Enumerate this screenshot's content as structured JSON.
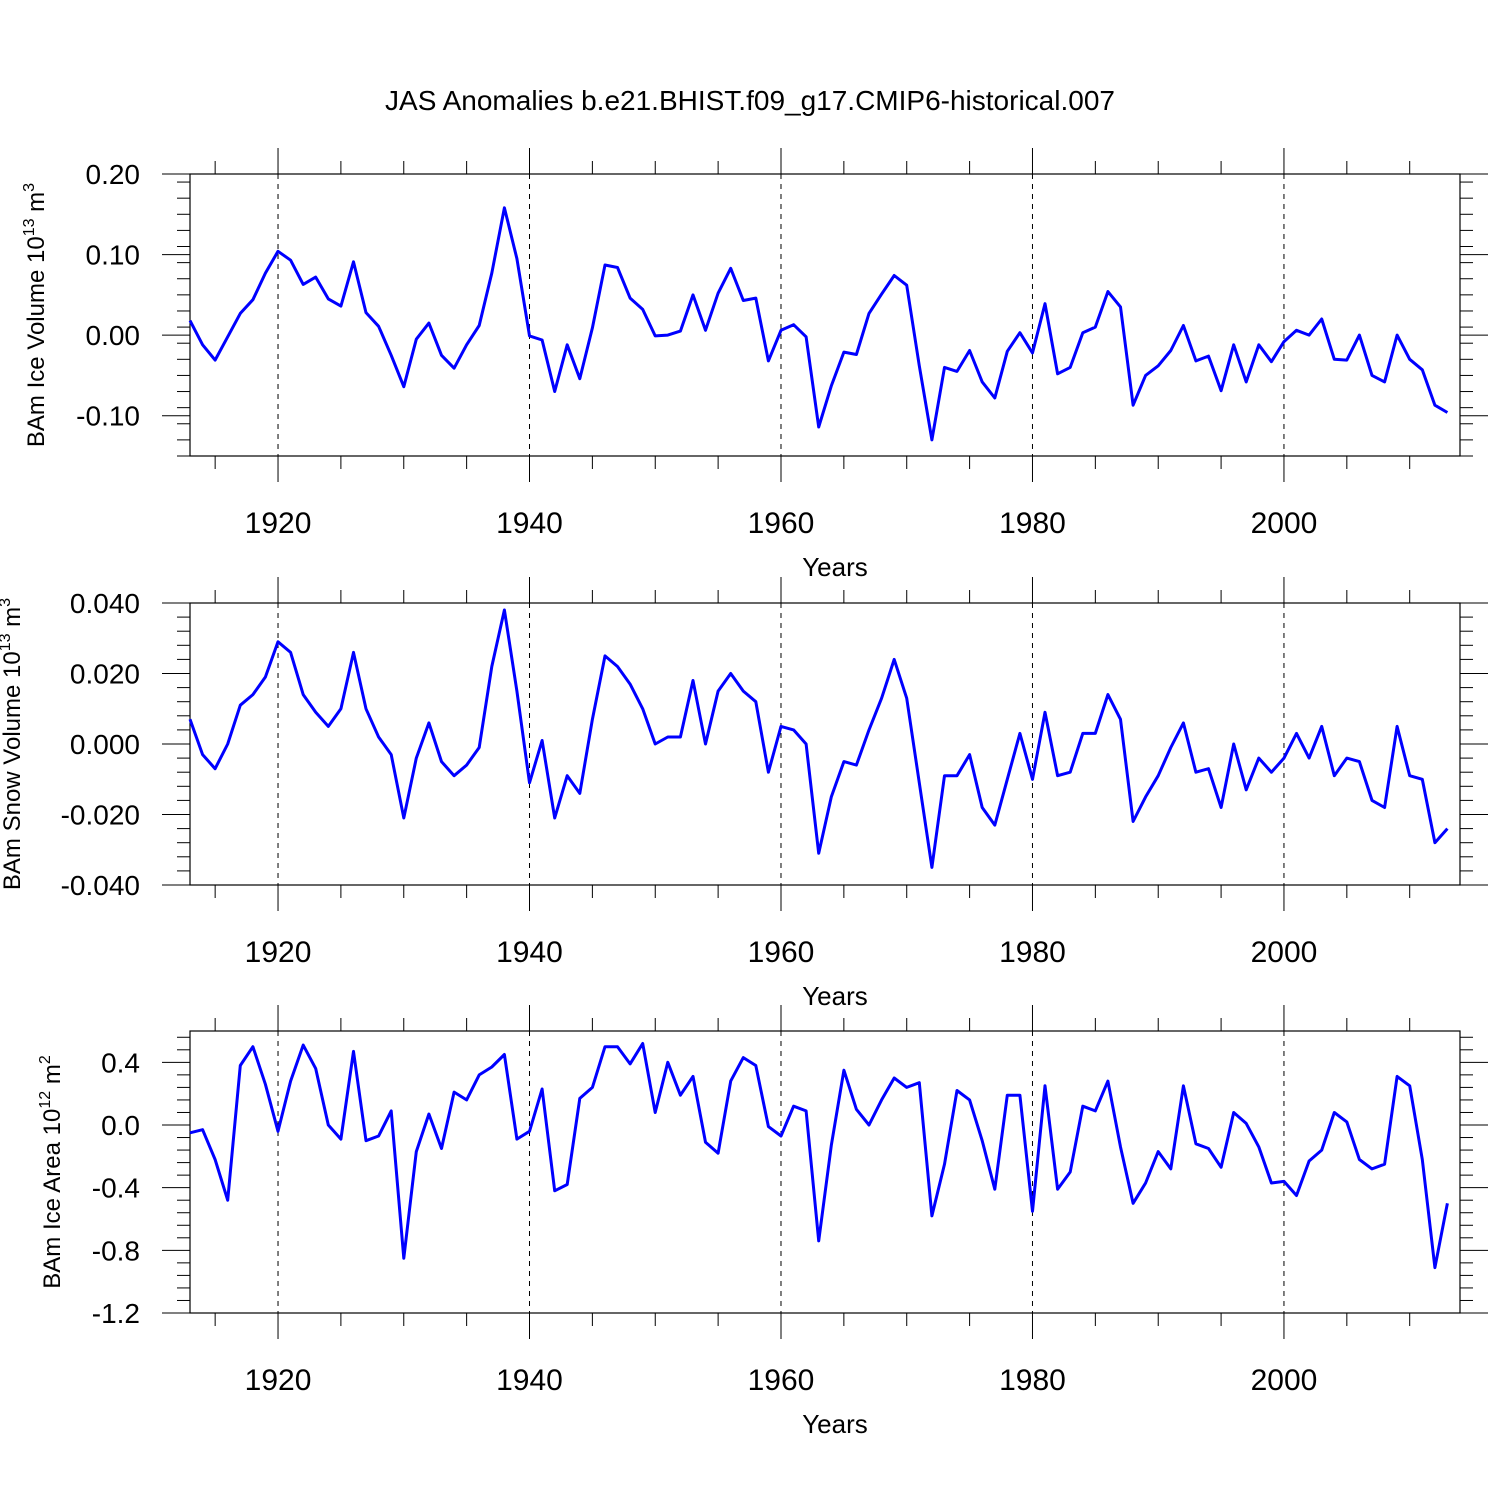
{
  "title": "JAS Anomalies b.e21.BHIST.f09_g17.CMIP6-historical.007",
  "chart_data": [
    {
      "type": "line",
      "ylabel_main": "BAm Ice Volume 10",
      "ylabel_exp": "13",
      "ylabel_unit": " m",
      "ylabel_unit_exp": "3",
      "xlabel": "Years",
      "xlim": [
        1913,
        2014
      ],
      "ylim": [
        -0.15,
        0.2
      ],
      "yticks": [
        -0.1,
        0.0,
        0.1,
        0.2
      ],
      "ytick_labels": [
        "-0.10",
        "0.00",
        "0.10",
        "0.20"
      ],
      "yminor": 0.02,
      "xticks": [
        1920,
        1940,
        1960,
        1980,
        2000
      ],
      "xtick_labels": [
        "1920",
        "1940",
        "1960",
        "1980",
        "2000"
      ],
      "line_color": "#0000ff",
      "series": [
        {
          "name": "Ice Volume",
          "x_start": 1913,
          "values": [
            0.018,
            -0.012,
            -0.031,
            -0.002,
            0.027,
            0.044,
            0.077,
            0.104,
            0.093,
            0.063,
            0.072,
            0.045,
            0.036,
            0.091,
            0.028,
            0.011,
            -0.025,
            -0.064,
            -0.005,
            0.015,
            -0.025,
            -0.041,
            -0.012,
            0.012,
            0.077,
            0.158,
            0.095,
            -0.001,
            -0.006,
            -0.07,
            -0.012,
            -0.054,
            0.009,
            0.087,
            0.084,
            0.046,
            0.032,
            -0.001,
            0.0,
            0.005,
            0.05,
            0.006,
            0.052,
            0.083,
            0.043,
            0.046,
            -0.032,
            0.006,
            0.013,
            -0.002,
            -0.114,
            -0.063,
            -0.021,
            -0.024,
            0.027,
            0.051,
            0.074,
            0.062,
            -0.038,
            -0.13,
            -0.04,
            -0.045,
            -0.019,
            -0.058,
            -0.078,
            -0.02,
            0.003,
            -0.022,
            0.039,
            -0.048,
            -0.04,
            0.003,
            0.01,
            0.054,
            0.035,
            -0.087,
            -0.05,
            -0.038,
            -0.019,
            0.012,
            -0.032,
            -0.026,
            -0.069,
            -0.012,
            -0.058,
            -0.012,
            -0.033,
            -0.008,
            0.006,
            0.0,
            0.02,
            -0.03,
            -0.031,
            0.0,
            -0.05,
            -0.058,
            0.0,
            -0.03,
            -0.043,
            -0.087,
            -0.096
          ]
        }
      ]
    },
    {
      "type": "line",
      "ylabel_main": "BAm Snow Volume 10",
      "ylabel_exp": "13",
      "ylabel_unit": " m",
      "ylabel_unit_exp": "3",
      "xlabel": "Years",
      "xlim": [
        1913,
        2014
      ],
      "ylim": [
        -0.04,
        0.04
      ],
      "yticks": [
        -0.04,
        -0.02,
        0.0,
        0.02,
        0.04
      ],
      "ytick_labels": [
        "-0.040",
        "-0.020",
        "0.000",
        "0.020",
        "0.040"
      ],
      "yminor": 0.004,
      "xticks": [
        1920,
        1940,
        1960,
        1980,
        2000
      ],
      "xtick_labels": [
        "1920",
        "1940",
        "1960",
        "1980",
        "2000"
      ],
      "line_color": "#0000ff",
      "series": [
        {
          "name": "Snow Volume",
          "x_start": 1913,
          "values": [
            0.007,
            -0.003,
            -0.007,
            0.0,
            0.011,
            0.014,
            0.019,
            0.029,
            0.026,
            0.014,
            0.009,
            0.005,
            0.01,
            0.026,
            0.01,
            0.002,
            -0.003,
            -0.021,
            -0.004,
            0.006,
            -0.005,
            -0.009,
            -0.006,
            -0.001,
            0.022,
            0.038,
            0.015,
            -0.011,
            0.001,
            -0.021,
            -0.009,
            -0.014,
            0.007,
            0.025,
            0.022,
            0.017,
            0.01,
            0.0,
            0.002,
            0.002,
            0.018,
            0.0,
            0.015,
            0.02,
            0.015,
            0.012,
            -0.008,
            0.005,
            0.004,
            0.0,
            -0.031,
            -0.015,
            -0.005,
            -0.006,
            0.004,
            0.013,
            0.024,
            0.013,
            -0.011,
            -0.035,
            -0.009,
            -0.009,
            -0.003,
            -0.018,
            -0.023,
            -0.01,
            0.003,
            -0.01,
            0.009,
            -0.009,
            -0.008,
            0.003,
            0.003,
            0.014,
            0.007,
            -0.022,
            -0.015,
            -0.009,
            -0.001,
            0.006,
            -0.008,
            -0.007,
            -0.018,
            0.0,
            -0.013,
            -0.004,
            -0.008,
            -0.004,
            0.003,
            -0.004,
            0.005,
            -0.009,
            -0.004,
            -0.005,
            -0.016,
            -0.018,
            0.005,
            -0.009,
            -0.01,
            -0.028,
            -0.024
          ]
        }
      ]
    },
    {
      "type": "line",
      "ylabel_main": "BAm Ice Area 10",
      "ylabel_exp": "12",
      "ylabel_unit": " m",
      "ylabel_unit_exp": "2",
      "xlabel": "Years",
      "xlim": [
        1913,
        2014
      ],
      "ylim": [
        -1.2,
        0.6
      ],
      "yticks": [
        -1.2,
        -0.8,
        -0.4,
        0.0,
        0.4
      ],
      "ytick_labels": [
        "-1.2",
        "-0.8",
        "-0.4",
        "0.0",
        "0.4"
      ],
      "yminor": 0.08,
      "xticks": [
        1920,
        1940,
        1960,
        1980,
        2000
      ],
      "xtick_labels": [
        "1920",
        "1940",
        "1960",
        "1980",
        "2000"
      ],
      "line_color": "#0000ff",
      "series": [
        {
          "name": "Ice Area",
          "x_start": 1913,
          "values": [
            -0.05,
            -0.03,
            -0.22,
            -0.48,
            0.38,
            0.5,
            0.26,
            -0.04,
            0.28,
            0.51,
            0.36,
            0.0,
            -0.09,
            0.47,
            -0.1,
            -0.07,
            0.09,
            -0.85,
            -0.17,
            0.07,
            -0.15,
            0.21,
            0.16,
            0.32,
            0.37,
            0.45,
            -0.09,
            -0.04,
            0.23,
            -0.42,
            -0.38,
            0.17,
            0.24,
            0.5,
            0.5,
            0.39,
            0.52,
            0.08,
            0.4,
            0.19,
            0.31,
            -0.11,
            -0.18,
            0.28,
            0.43,
            0.38,
            -0.01,
            -0.07,
            0.12,
            0.09,
            -0.74,
            -0.13,
            0.35,
            0.1,
            0.0,
            0.16,
            0.3,
            0.24,
            0.27,
            -0.58,
            -0.25,
            0.22,
            0.16,
            -0.1,
            -0.41,
            0.19,
            0.19,
            -0.55,
            0.25,
            -0.41,
            -0.3,
            0.12,
            0.09,
            0.28,
            -0.14,
            -0.5,
            -0.37,
            -0.17,
            -0.28,
            0.25,
            -0.12,
            -0.15,
            -0.27,
            0.08,
            0.01,
            -0.14,
            -0.37,
            -0.36,
            -0.45,
            -0.23,
            -0.16,
            0.08,
            0.02,
            -0.22,
            -0.28,
            -0.25,
            0.31,
            0.25,
            -0.22,
            -0.91,
            -0.5
          ]
        }
      ]
    }
  ]
}
